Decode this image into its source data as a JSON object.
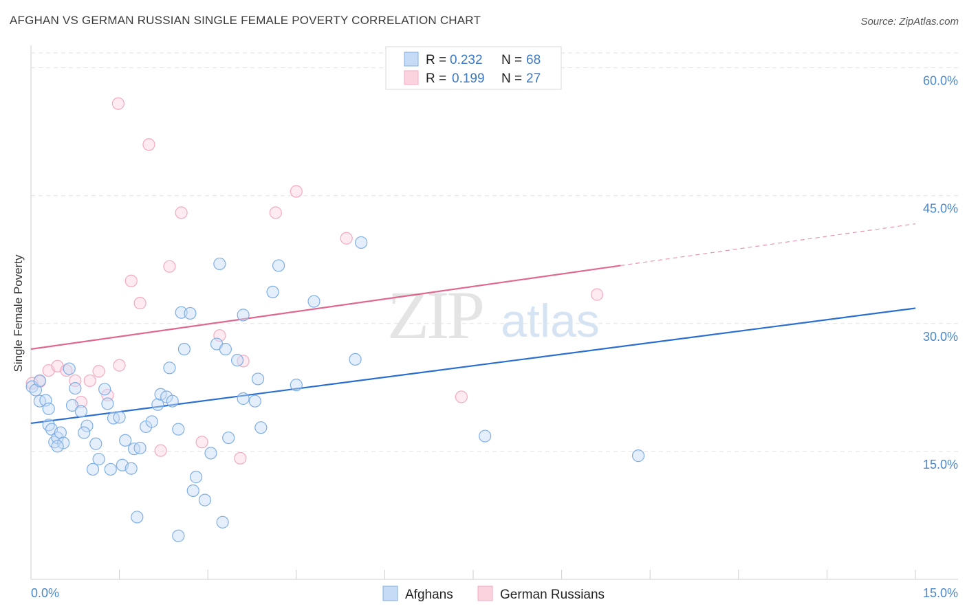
{
  "title": "AFGHAN VS GERMAN RUSSIAN SINGLE FEMALE POVERTY CORRELATION CHART",
  "source": "Source: ZipAtlas.com",
  "watermark": {
    "zip": "ZIP",
    "atlas": "atlas"
  },
  "legend": {
    "rows": [
      {
        "r_label": "R =",
        "r_value": "0.232",
        "n_label": "N =",
        "n_value": "68",
        "color": "#a9c8f0"
      },
      {
        "r_label": "R =",
        "r_value": "0.199",
        "n_label": "N =",
        "n_value": "27",
        "color": "#f6b6c8"
      }
    ]
  },
  "bottom_legend": {
    "afghans": "Afghans",
    "german_russians": "German Russians"
  },
  "chart_data": {
    "type": "scatter",
    "title": "AFGHAN VS GERMAN RUSSIAN SINGLE FEMALE POVERTY CORRELATION CHART",
    "xlabel": "",
    "ylabel": "Single Female Poverty",
    "xlim": [
      0,
      15
    ],
    "ylim": [
      0,
      61.5
    ],
    "x_tick_labels": [
      "0.0%",
      "15.0%"
    ],
    "y_ticks": [
      15,
      30,
      45,
      60
    ],
    "y_tick_labels": [
      "15.0%",
      "30.0%",
      "45.0%",
      "60.0%"
    ],
    "grid": "horizontal dashed",
    "legend_position": "top-center",
    "series": [
      {
        "name": "Afghans",
        "color": "#7eaee6",
        "line_color": "#2a6fd0",
        "R": 0.232,
        "N": 68,
        "trend": {
          "x": [
            0,
            15
          ],
          "y": [
            18.3,
            31.8
          ]
        },
        "points": [
          [
            0.02,
            22.6
          ],
          [
            0.08,
            22.2
          ],
          [
            0.15,
            20.9
          ],
          [
            0.25,
            21.0
          ],
          [
            0.3,
            18.1
          ],
          [
            0.35,
            17.6
          ],
          [
            0.4,
            16.1
          ],
          [
            0.45,
            16.6
          ],
          [
            0.5,
            17.2
          ],
          [
            0.55,
            16.0
          ],
          [
            0.45,
            15.6
          ],
          [
            0.7,
            20.4
          ],
          [
            0.75,
            22.4
          ],
          [
            0.85,
            19.7
          ],
          [
            0.95,
            18.0
          ],
          [
            0.9,
            17.2
          ],
          [
            1.1,
            15.9
          ],
          [
            1.15,
            14.1
          ],
          [
            1.05,
            12.9
          ],
          [
            1.35,
            12.9
          ],
          [
            1.25,
            22.3
          ],
          [
            1.3,
            20.6
          ],
          [
            1.4,
            18.9
          ],
          [
            1.5,
            19.0
          ],
          [
            1.55,
            13.4
          ],
          [
            1.6,
            16.3
          ],
          [
            1.7,
            13.0
          ],
          [
            1.75,
            15.3
          ],
          [
            1.85,
            15.4
          ],
          [
            1.95,
            17.9
          ],
          [
            2.05,
            18.5
          ],
          [
            2.15,
            20.5
          ],
          [
            2.2,
            21.7
          ],
          [
            2.3,
            21.4
          ],
          [
            2.35,
            24.8
          ],
          [
            2.4,
            20.9
          ],
          [
            2.5,
            17.6
          ],
          [
            2.55,
            31.3
          ],
          [
            2.6,
            27.0
          ],
          [
            2.7,
            31.2
          ],
          [
            2.8,
            12.0
          ],
          [
            2.75,
            10.4
          ],
          [
            2.95,
            9.3
          ],
          [
            3.05,
            14.8
          ],
          [
            3.15,
            27.6
          ],
          [
            3.2,
            37.0
          ],
          [
            3.3,
            27.0
          ],
          [
            3.35,
            16.6
          ],
          [
            3.5,
            25.7
          ],
          [
            3.6,
            21.2
          ],
          [
            3.6,
            31.0
          ],
          [
            3.8,
            20.9
          ],
          [
            3.85,
            23.5
          ],
          [
            3.9,
            17.8
          ],
          [
            4.1,
            33.7
          ],
          [
            4.2,
            36.8
          ],
          [
            4.5,
            22.8
          ],
          [
            4.8,
            32.6
          ],
          [
            5.5,
            25.8
          ],
          [
            5.6,
            39.5
          ],
          [
            7.7,
            16.8
          ],
          [
            10.3,
            14.5
          ],
          [
            0.15,
            23.3
          ],
          [
            0.3,
            20.0
          ],
          [
            1.8,
            7.3
          ],
          [
            2.5,
            5.1
          ],
          [
            3.25,
            6.7
          ],
          [
            0.65,
            24.7
          ]
        ]
      },
      {
        "name": "German Russians",
        "color": "#f4a9c0",
        "line_color": "#e0678e",
        "R": 0.199,
        "N": 27,
        "trend": {
          "x": [
            0,
            10
          ],
          "y": [
            27.0,
            36.8
          ]
        },
        "points": [
          [
            0.02,
            23.0
          ],
          [
            0.15,
            23.2
          ],
          [
            0.3,
            24.5
          ],
          [
            0.45,
            25.0
          ],
          [
            0.6,
            24.5
          ],
          [
            0.75,
            23.3
          ],
          [
            0.85,
            20.8
          ],
          [
            1.0,
            23.3
          ],
          [
            1.15,
            24.4
          ],
          [
            1.3,
            21.6
          ],
          [
            1.5,
            25.1
          ],
          [
            1.7,
            35.0
          ],
          [
            1.85,
            32.4
          ],
          [
            2.0,
            51.0
          ],
          [
            2.2,
            15.1
          ],
          [
            2.35,
            36.7
          ],
          [
            2.55,
            43.0
          ],
          [
            2.9,
            16.1
          ],
          [
            3.2,
            28.6
          ],
          [
            3.55,
            14.2
          ],
          [
            3.6,
            25.6
          ],
          [
            4.15,
            43.0
          ],
          [
            4.5,
            45.5
          ],
          [
            5.35,
            40.0
          ],
          [
            7.3,
            21.4
          ],
          [
            9.6,
            33.4
          ],
          [
            1.48,
            55.8
          ]
        ]
      }
    ]
  }
}
